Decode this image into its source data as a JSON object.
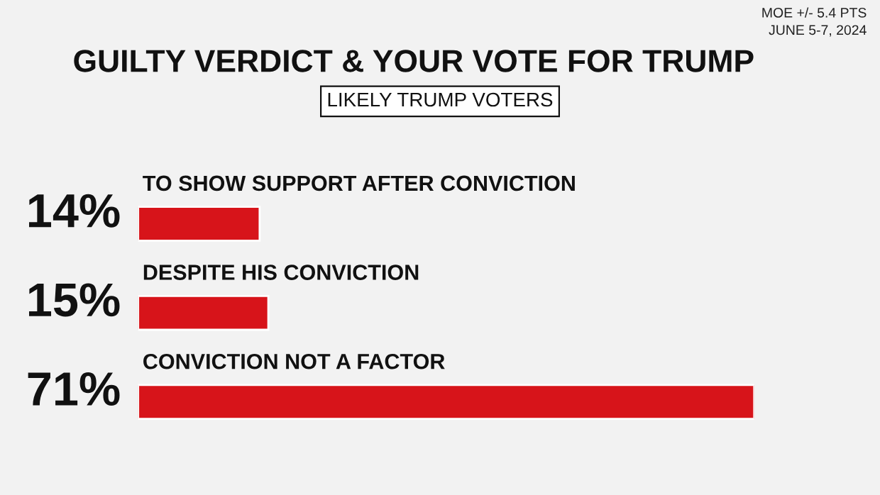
{
  "chart_data": {
    "type": "bar",
    "orientation": "horizontal",
    "title": "GUILTY VERDICT & YOUR VOTE FOR TRUMP",
    "subtitle": "LIKELY TRUMP VOTERS",
    "annotations": [
      "MOE +/- 5.4 PTS",
      "JUNE 5-7, 2024"
    ],
    "categories": [
      "TO SHOW SUPPORT AFTER CONVICTION",
      "DESPITE HIS CONVICTION",
      "CONVICTION NOT A FACTOR"
    ],
    "values": [
      14,
      15,
      71
    ],
    "value_labels": [
      "14%",
      "15%",
      "71%"
    ],
    "color": "#d7141a"
  }
}
